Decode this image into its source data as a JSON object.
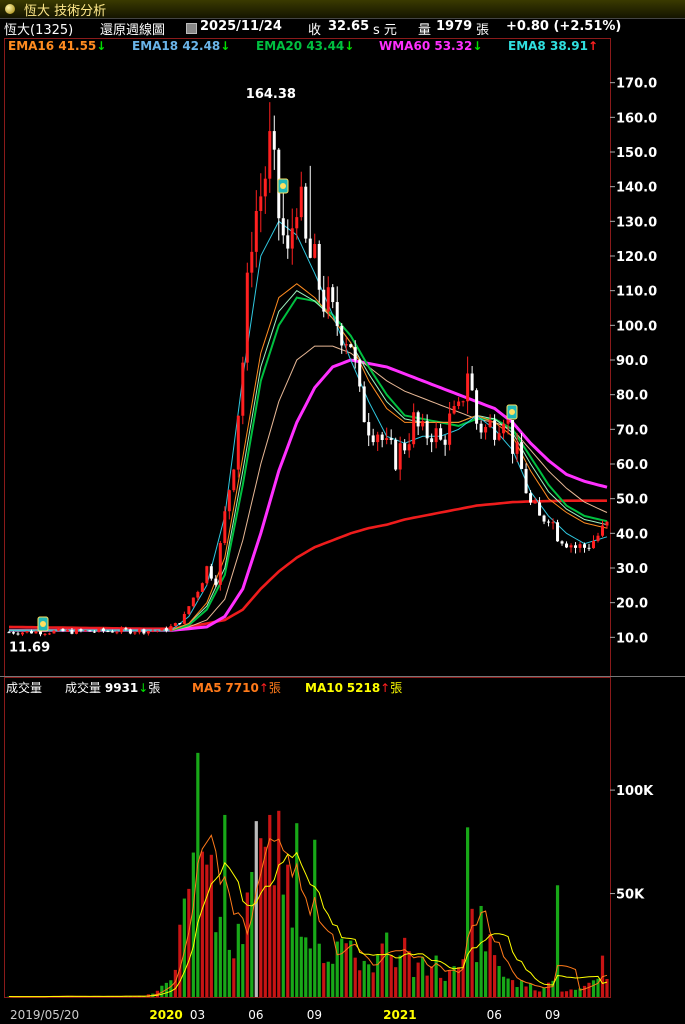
{
  "window": {
    "title": "恆大 技術分析"
  },
  "info": {
    "stock": "恆大(1325)",
    "mode": "還原週線圖",
    "date": "2025/11/24",
    "close_label": "收",
    "close": "32.65",
    "unit": "s 元",
    "vol_label": "量",
    "vol": "1979",
    "vol_unit": "張",
    "change": "+0.80 (+2.51%)"
  },
  "legend": [
    {
      "name": "EMA16",
      "value": "41.55",
      "arrow": "↓",
      "color": "#ff8c20",
      "arrow_color": "#00e000"
    },
    {
      "name": "EMA18",
      "value": "42.48",
      "arrow": "↓",
      "color": "#6ab4e8",
      "arrow_color": "#00e000"
    },
    {
      "name": "EMA20",
      "value": "43.44",
      "arrow": "↓",
      "color": "#00c040",
      "arrow_color": "#00e000"
    },
    {
      "name": "WMA60",
      "value": "53.32",
      "arrow": "↓",
      "color": "#ff30ff",
      "arrow_color": "#00e000"
    },
    {
      "name": "EMA8",
      "value": "38.91",
      "arrow": "↑",
      "color": "#30e0e0",
      "arrow_color": "#ff2020"
    }
  ],
  "vol_legend": {
    "title": "成交量",
    "items": [
      {
        "name": "成交量",
        "value": "9931",
        "arrow": "↓",
        "unit": "張",
        "color": "#ffffff",
        "arrow_color": "#00e000"
      },
      {
        "name": "MA5",
        "value": "7710",
        "arrow": "↑",
        "unit": "張",
        "color": "#ff7a1a",
        "arrow_color": "#ff2020"
      },
      {
        "name": "MA10",
        "value": "5218",
        "arrow": "↑",
        "unit": "張",
        "color": "#ffff00",
        "arrow_color": "#ff2020"
      }
    ]
  },
  "chart_data": {
    "type": "candlestick",
    "price_axis": {
      "ticks": [
        "170.0",
        "160.0",
        "150.0",
        "140.0",
        "130.0",
        "120.0",
        "110.0",
        "100.0",
        "90.0",
        "80.0",
        "70.0",
        "60.0",
        "50.0",
        "40.0",
        "30.0",
        "20.0",
        "10.0"
      ],
      "ylim": [
        0,
        180
      ]
    },
    "vol_axis": {
      "ticks": [
        "100K",
        "50K"
      ],
      "ylim": [
        0,
        145000
      ]
    },
    "x_labels": [
      {
        "label": "2019/05/20",
        "week": 0,
        "color": "#cccccc"
      },
      {
        "label": "2020",
        "week": 33,
        "color": "#ffff00"
      },
      {
        "label": "03",
        "week": 42,
        "color": "#ffffff"
      },
      {
        "label": "06",
        "week": 55,
        "color": "#ffffff"
      },
      {
        "label": "09",
        "week": 68,
        "color": "#ffffff"
      },
      {
        "label": "2021",
        "week": 85,
        "color": "#ffff00"
      },
      {
        "label": "06",
        "week": 108,
        "color": "#ffffff"
      },
      {
        "label": "09",
        "week": 121,
        "color": "#ffffff"
      }
    ],
    "annotations": [
      {
        "text": "164.38",
        "week": 58,
        "value": 164.38
      },
      {
        "text": "11.69",
        "week": 5,
        "value": 11.69
      }
    ],
    "candle_anchors": [
      [
        0,
        11.5
      ],
      [
        34,
        12
      ],
      [
        37,
        13.5
      ],
      [
        39,
        16
      ],
      [
        40,
        19
      ],
      [
        42,
        24
      ],
      [
        44,
        30
      ],
      [
        46,
        27
      ],
      [
        48,
        45
      ],
      [
        50,
        62
      ],
      [
        52,
        90
      ],
      [
        54,
        128
      ],
      [
        56,
        138
      ],
      [
        58,
        150
      ],
      [
        60,
        132
      ],
      [
        62,
        118
      ],
      [
        64,
        140
      ],
      [
        66,
        122
      ],
      [
        68,
        116
      ],
      [
        70,
        108
      ],
      [
        72,
        102
      ],
      [
        74,
        100
      ],
      [
        76,
        96
      ],
      [
        78,
        78
      ],
      [
        80,
        72
      ],
      [
        82,
        70
      ],
      [
        84,
        64
      ],
      [
        86,
        62
      ],
      [
        88,
        66
      ],
      [
        90,
        72
      ],
      [
        92,
        68
      ],
      [
        94,
        70
      ],
      [
        96,
        66
      ],
      [
        98,
        72
      ],
      [
        100,
        74
      ],
      [
        102,
        88
      ],
      [
        104,
        72
      ],
      [
        106,
        70
      ],
      [
        108,
        72
      ],
      [
        110,
        76
      ],
      [
        112,
        66
      ],
      [
        114,
        58
      ],
      [
        116,
        48
      ],
      [
        118,
        44
      ],
      [
        120,
        46
      ],
      [
        122,
        40
      ],
      [
        124,
        38
      ],
      [
        126,
        36
      ],
      [
        128,
        36
      ],
      [
        130,
        38
      ],
      [
        133,
        42
      ]
    ],
    "ema8_anchors": [
      [
        0,
        12
      ],
      [
        36,
        12
      ],
      [
        40,
        16
      ],
      [
        44,
        25
      ],
      [
        48,
        45
      ],
      [
        52,
        85
      ],
      [
        56,
        120
      ],
      [
        60,
        130
      ],
      [
        64,
        126
      ],
      [
        68,
        115
      ],
      [
        72,
        103
      ],
      [
        76,
        90
      ],
      [
        80,
        78
      ],
      [
        84,
        68
      ],
      [
        88,
        66
      ],
      [
        92,
        68
      ],
      [
        96,
        68
      ],
      [
        100,
        70
      ],
      [
        104,
        74
      ],
      [
        108,
        70
      ],
      [
        112,
        64
      ],
      [
        116,
        52
      ],
      [
        120,
        45
      ],
      [
        124,
        40
      ],
      [
        128,
        37
      ],
      [
        133,
        39
      ]
    ],
    "ema16_anchors": [
      [
        0,
        12
      ],
      [
        36,
        12
      ],
      [
        40,
        14
      ],
      [
        44,
        20
      ],
      [
        48,
        33
      ],
      [
        52,
        62
      ],
      [
        56,
        92
      ],
      [
        60,
        108
      ],
      [
        64,
        112
      ],
      [
        68,
        108
      ],
      [
        72,
        102
      ],
      [
        76,
        95
      ],
      [
        80,
        84
      ],
      [
        84,
        76
      ],
      [
        88,
        72
      ],
      [
        92,
        72
      ],
      [
        96,
        72
      ],
      [
        100,
        72
      ],
      [
        104,
        74
      ],
      [
        108,
        72
      ],
      [
        112,
        68
      ],
      [
        116,
        58
      ],
      [
        120,
        50
      ],
      [
        124,
        46
      ],
      [
        128,
        43
      ],
      [
        133,
        41.5
      ]
    ],
    "ema18_anchors": [
      [
        0,
        12
      ],
      [
        36,
        12
      ],
      [
        40,
        14
      ],
      [
        44,
        19
      ],
      [
        48,
        30
      ],
      [
        52,
        58
      ],
      [
        56,
        88
      ],
      [
        60,
        104
      ],
      [
        64,
        110
      ],
      [
        68,
        107
      ],
      [
        72,
        102
      ],
      [
        76,
        95
      ],
      [
        80,
        86
      ],
      [
        84,
        78
      ],
      [
        88,
        73
      ],
      [
        92,
        72
      ],
      [
        96,
        72
      ],
      [
        100,
        72
      ],
      [
        104,
        74
      ],
      [
        108,
        73
      ],
      [
        112,
        69
      ],
      [
        116,
        60
      ],
      [
        120,
        52
      ],
      [
        124,
        47
      ],
      [
        128,
        44
      ],
      [
        133,
        42.5
      ]
    ],
    "ema20_anchors": [
      [
        0,
        12
      ],
      [
        36,
        12
      ],
      [
        40,
        13.5
      ],
      [
        44,
        18
      ],
      [
        48,
        28
      ],
      [
        52,
        54
      ],
      [
        56,
        84
      ],
      [
        60,
        100
      ],
      [
        64,
        108
      ],
      [
        68,
        107
      ],
      [
        72,
        103
      ],
      [
        76,
        97
      ],
      [
        80,
        88
      ],
      [
        84,
        80
      ],
      [
        88,
        74
      ],
      [
        92,
        73
      ],
      [
        96,
        72
      ],
      [
        100,
        71
      ],
      [
        104,
        73
      ],
      [
        108,
        73
      ],
      [
        112,
        70
      ],
      [
        116,
        62
      ],
      [
        120,
        54
      ],
      [
        124,
        48
      ],
      [
        128,
        45
      ],
      [
        133,
        43.5
      ]
    ],
    "ema28_anchors": [
      [
        0,
        12
      ],
      [
        36,
        12
      ],
      [
        40,
        13
      ],
      [
        44,
        15
      ],
      [
        48,
        21
      ],
      [
        52,
        38
      ],
      [
        56,
        60
      ],
      [
        60,
        78
      ],
      [
        64,
        90
      ],
      [
        68,
        94
      ],
      [
        72,
        94
      ],
      [
        76,
        92
      ],
      [
        80,
        88
      ],
      [
        84,
        84
      ],
      [
        88,
        81
      ],
      [
        92,
        79
      ],
      [
        96,
        77
      ],
      [
        100,
        75
      ],
      [
        104,
        73
      ],
      [
        108,
        72
      ],
      [
        112,
        70
      ],
      [
        116,
        64
      ],
      [
        120,
        58
      ],
      [
        124,
        53
      ],
      [
        128,
        49
      ],
      [
        133,
        46
      ]
    ],
    "wma60_anchors": [
      [
        0,
        12
      ],
      [
        36,
        12
      ],
      [
        40,
        12.5
      ],
      [
        44,
        13
      ],
      [
        48,
        16
      ],
      [
        52,
        24
      ],
      [
        56,
        40
      ],
      [
        60,
        58
      ],
      [
        64,
        72
      ],
      [
        68,
        82
      ],
      [
        72,
        88
      ],
      [
        76,
        90
      ],
      [
        80,
        89
      ],
      [
        84,
        88
      ],
      [
        88,
        86
      ],
      [
        92,
        84
      ],
      [
        96,
        82
      ],
      [
        100,
        80
      ],
      [
        104,
        78
      ],
      [
        108,
        76
      ],
      [
        112,
        72
      ],
      [
        116,
        66
      ],
      [
        120,
        61
      ],
      [
        124,
        57
      ],
      [
        128,
        55
      ],
      [
        133,
        53.3
      ]
    ],
    "ma200_anchors": [
      [
        0,
        13
      ],
      [
        30,
        12.5
      ],
      [
        36,
        12.5
      ],
      [
        42,
        13.5
      ],
      [
        48,
        15
      ],
      [
        52,
        18
      ],
      [
        56,
        24
      ],
      [
        60,
        29
      ],
      [
        64,
        33
      ],
      [
        68,
        36
      ],
      [
        72,
        38
      ],
      [
        76,
        40
      ],
      [
        80,
        41.5
      ],
      [
        84,
        42.5
      ],
      [
        88,
        44
      ],
      [
        92,
        45
      ],
      [
        96,
        46
      ],
      [
        100,
        47
      ],
      [
        104,
        48
      ],
      [
        108,
        48.5
      ],
      [
        112,
        49
      ],
      [
        116,
        49.2
      ],
      [
        120,
        49.3
      ],
      [
        124,
        49.4
      ],
      [
        128,
        49.4
      ],
      [
        133,
        49.4
      ]
    ],
    "vol_anchors": [
      [
        0,
        200
      ],
      [
        30,
        400
      ],
      [
        34,
        5000
      ],
      [
        36,
        12000
      ],
      [
        38,
        30000
      ],
      [
        40,
        40000
      ],
      [
        42,
        80000
      ],
      [
        44,
        60000
      ],
      [
        46,
        40000
      ],
      [
        48,
        28000
      ],
      [
        50,
        22000
      ],
      [
        52,
        30000
      ],
      [
        54,
        50000
      ],
      [
        56,
        66000
      ],
      [
        58,
        50000
      ],
      [
        60,
        40000
      ],
      [
        62,
        52000
      ],
      [
        64,
        45000
      ],
      [
        66,
        36000
      ],
      [
        68,
        28000
      ],
      [
        70,
        24000
      ],
      [
        72,
        22000
      ],
      [
        74,
        28000
      ],
      [
        76,
        20000
      ],
      [
        78,
        18000
      ],
      [
        80,
        16000
      ],
      [
        82,
        18000
      ],
      [
        84,
        24000
      ],
      [
        86,
        12000
      ],
      [
        88,
        22000
      ],
      [
        90,
        16000
      ],
      [
        92,
        14000
      ],
      [
        94,
        18000
      ],
      [
        96,
        12000
      ],
      [
        98,
        10000
      ],
      [
        100,
        14000
      ],
      [
        102,
        40000
      ],
      [
        104,
        28000
      ],
      [
        106,
        26000
      ],
      [
        108,
        20000
      ],
      [
        110,
        14000
      ],
      [
        112,
        10000
      ],
      [
        114,
        6000
      ],
      [
        116,
        5000
      ],
      [
        118,
        4000
      ],
      [
        120,
        10000
      ],
      [
        122,
        4000
      ],
      [
        124,
        3000
      ],
      [
        126,
        3000
      ],
      [
        128,
        4000
      ],
      [
        130,
        6000
      ],
      [
        133,
        10000
      ]
    ],
    "vol_spikes": [
      [
        42,
        118000
      ],
      [
        48,
        88000
      ],
      [
        55,
        85000
      ],
      [
        58,
        88000
      ],
      [
        60,
        90000
      ],
      [
        64,
        84000
      ],
      [
        68,
        76000
      ],
      [
        102,
        82000
      ],
      [
        105,
        44000
      ],
      [
        122,
        54000
      ],
      [
        132,
        20000
      ]
    ],
    "price_spikes": [
      [
        58,
        164.38
      ],
      [
        61,
        140
      ],
      [
        67,
        146
      ],
      [
        102,
        91
      ]
    ]
  }
}
